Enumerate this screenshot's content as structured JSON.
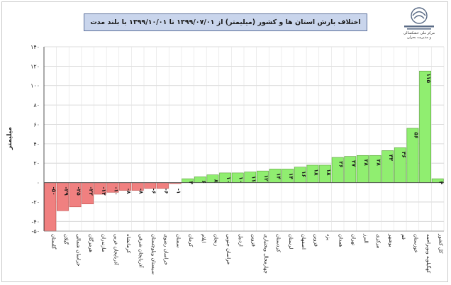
{
  "header": {
    "title": "اختلاف بارش استان ها و کشور (میلیمتر) از ۱۳۹۹/۰۷/۰۱ تا ۱۳۹۹/۱۰/۰۱ با بلند مدت",
    "org_line1": "مرکز ملی خشکسالی",
    "org_line2": "و مدیریت بحران"
  },
  "chart_data": {
    "type": "bar",
    "title": "اختلاف بارش استان ها و کشور (میلیمتر) از ۱۳۹۹/۰۷/۰۱ تا ۱۳۹۹/۱۰/۰۱ با بلند مدت",
    "ylabel": "میلیمتر",
    "xlabel": "",
    "ylim": [
      -50,
      140
    ],
    "yticks": [
      140,
      120,
      100,
      80,
      60,
      40,
      20,
      0,
      -20,
      -40,
      -50
    ],
    "ytick_labels": [
      "۱۴۰",
      "۱۲۰",
      "۱۰۰",
      "۸۰",
      "۶۰",
      "۴۰",
      "۲۰",
      "۰",
      "-۲۰",
      "-۴۰",
      "-۵۰"
    ],
    "grid": true,
    "colors": {
      "negative": "#f08080",
      "positive": "#90ee70",
      "country": "#90ee70"
    },
    "categories": [
      "گلستان",
      "گیلان",
      "خراسان شمالی",
      "هرمزگان",
      "مازندران",
      "آذربایجان غربی",
      "کرمانشاه",
      "آذربایجان شرقی",
      "سیستان وبلوچستان",
      "خراسان رضوی",
      "سمنان",
      "کرمان",
      "ایلام",
      "زنجان",
      "خراسان جنوبی",
      "اردبیل",
      "قزوین",
      "چهارمحال وبختیاری",
      "کردستان",
      "لرستان",
      "اصفهان",
      "قزوین",
      "یزد",
      "همدان",
      "تهران",
      "البرز",
      "مرکزی",
      "بوشهر",
      "قم",
      "خوزستان",
      "کهگیلویه وبویراحمد",
      "کل کشور"
    ],
    "values": [
      -50,
      -29,
      -25,
      -22,
      -12,
      -10,
      -8,
      -8,
      -6,
      -6,
      -1,
      4,
      6,
      8,
      10,
      10,
      11,
      12,
      14,
      14,
      16,
      18,
      18,
      26,
      27,
      28,
      28,
      33,
      36,
      56,
      115,
      4
    ],
    "value_labels": [
      "-۵۰",
      "-۲۹",
      "-۲۵",
      "-۲۲",
      "-۱۲",
      "-۱۰",
      "-۸",
      "-۸",
      "-۶",
      "-۶",
      "-۱",
      "۴",
      "۶",
      "۸",
      "۱۰",
      "۱۰",
      "۱۱",
      "۱۲",
      "۱۴",
      "۱۴",
      "۱۶",
      "۱۸",
      "۱۸",
      "۲۶",
      "۲۷",
      "۲۸",
      "۲۸",
      "۳۳",
      "۳۶",
      "۵۶",
      "۱۱۵",
      "۴"
    ]
  }
}
